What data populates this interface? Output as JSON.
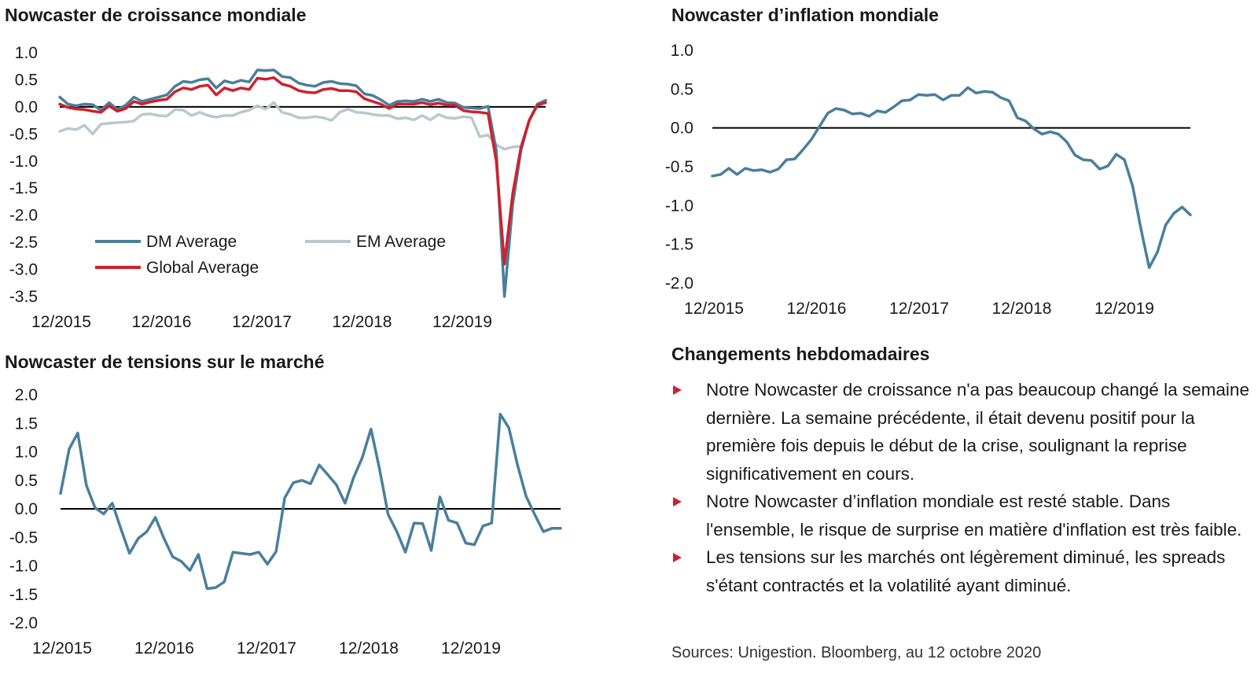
{
  "charts": {
    "growth": {
      "title": "Nowcaster de croissance mondiale"
    },
    "inflation": {
      "title": "Nowcaster d’inflation mondiale"
    },
    "stress": {
      "title": "Nowcaster de tensions sur le marché"
    }
  },
  "colors": {
    "dm": "#4a7f9b",
    "em": "#b9c8d0",
    "global": "#d0202d",
    "zero_line": "#000000",
    "bullet": "#d0202d"
  },
  "weekly": {
    "title": "Changements hebdomadaires",
    "bullets": [
      "Notre Nowcaster de croissance n'a pas beaucoup changé la semaine dernière. La semaine précédente, il était devenu positif pour la première fois depuis le début de la crise, soulignant la reprise significativement en cours.",
      "Notre Nowcaster d’inflation mondiale est resté stable. Dans l'ensemble, le risque de surprise en matière d'inflation est très faible.",
      "Les tensions sur les marchés ont légèrement diminué, les spreads s'étant contractés et la volatilité ayant diminué."
    ]
  },
  "sources": "Sources: Unigestion. Bloomberg, au 12 octobre 2020",
  "chart_data": [
    {
      "type": "line",
      "title": "Nowcaster de croissance mondiale",
      "xlabel": "",
      "ylabel": "",
      "x_tick_labels": [
        "12/2015",
        "12/2016",
        "12/2017",
        "12/2018",
        "12/2019"
      ],
      "y_tick_labels": [
        "1.0",
        "0.5",
        "0.0",
        "-0.5",
        "-1.0",
        "-1.5",
        "-2.0",
        "-2.5",
        "-3.0",
        "-3.5"
      ],
      "ylim": [
        -3.5,
        1.0
      ],
      "x_start": "12/2015",
      "x_end": "10/2020",
      "legend": [
        "DM Average",
        "EM Average",
        "Global Average"
      ],
      "legend_position": "bottom-left",
      "series": [
        {
          "name": "DM Average",
          "color": "#4a7f9b",
          "values": [
            0.18,
            0.05,
            0.02,
            0.05,
            0.04,
            -0.06,
            0.08,
            -0.05,
            0.03,
            0.18,
            0.1,
            0.14,
            0.18,
            0.22,
            0.38,
            0.47,
            0.45,
            0.5,
            0.52,
            0.35,
            0.48,
            0.44,
            0.49,
            0.46,
            0.68,
            0.67,
            0.68,
            0.56,
            0.54,
            0.44,
            0.4,
            0.38,
            0.45,
            0.47,
            0.43,
            0.42,
            0.39,
            0.24,
            0.21,
            0.13,
            0.03,
            0.1,
            0.11,
            0.1,
            0.14,
            0.1,
            0.14,
            0.08,
            0.07,
            -0.01,
            -0.02,
            -0.03,
            0.01,
            -0.8,
            -3.5,
            -1.8,
            -0.8,
            -0.25,
            0.05,
            0.12
          ]
        },
        {
          "name": "EM Average",
          "color": "#b9c8d0",
          "values": [
            -0.45,
            -0.4,
            -0.42,
            -0.34,
            -0.5,
            -0.32,
            -0.3,
            -0.29,
            -0.28,
            -0.26,
            -0.14,
            -0.13,
            -0.16,
            -0.17,
            -0.05,
            -0.06,
            -0.16,
            -0.1,
            -0.16,
            -0.19,
            -0.16,
            -0.16,
            -0.1,
            -0.06,
            0.02,
            -0.04,
            0.08,
            -0.1,
            -0.14,
            -0.2,
            -0.2,
            -0.18,
            -0.2,
            -0.25,
            -0.1,
            -0.04,
            -0.1,
            -0.11,
            -0.14,
            -0.16,
            -0.16,
            -0.22,
            -0.2,
            -0.24,
            -0.16,
            -0.24,
            -0.14,
            -0.2,
            -0.21,
            -0.18,
            -0.2,
            -0.55,
            -0.52,
            -0.7,
            -0.78,
            -0.74,
            -0.73,
            -0.25,
            0.05,
            0.12
          ]
        },
        {
          "name": "Global Average",
          "color": "#d0202d",
          "values": [
            0.05,
            -0.01,
            -0.04,
            -0.05,
            -0.08,
            -0.1,
            0.02,
            -0.08,
            -0.03,
            0.1,
            0.05,
            0.09,
            0.12,
            0.14,
            0.28,
            0.35,
            0.32,
            0.38,
            0.4,
            0.22,
            0.35,
            0.3,
            0.35,
            0.32,
            0.53,
            0.51,
            0.54,
            0.42,
            0.38,
            0.3,
            0.27,
            0.26,
            0.32,
            0.34,
            0.3,
            0.3,
            0.28,
            0.15,
            0.1,
            0.05,
            -0.03,
            0.05,
            0.05,
            0.05,
            0.08,
            0.04,
            0.07,
            0.03,
            0.03,
            -0.07,
            -0.09,
            -0.1,
            -0.12,
            -1.0,
            -2.9,
            -1.6,
            -0.75,
            -0.25,
            0.03,
            0.08
          ]
        }
      ]
    },
    {
      "type": "line",
      "title": "Nowcaster d’inflation mondiale",
      "xlabel": "",
      "ylabel": "",
      "x_tick_labels": [
        "12/2015",
        "12/2016",
        "12/2017",
        "12/2018",
        "12/2019"
      ],
      "y_tick_labels": [
        "1.0",
        "0.5",
        "0.0",
        "-0.5",
        "-1.0",
        "-1.5",
        "-2.0"
      ],
      "ylim": [
        -2.0,
        1.0
      ],
      "x_start": "12/2015",
      "x_end": "10/2020",
      "series": [
        {
          "name": "",
          "color": "#4a7f9b",
          "values": [
            -0.62,
            -0.6,
            -0.52,
            -0.6,
            -0.52,
            -0.55,
            -0.54,
            -0.57,
            -0.53,
            -0.41,
            -0.4,
            -0.28,
            -0.15,
            0.02,
            0.19,
            0.25,
            0.23,
            0.18,
            0.19,
            0.15,
            0.22,
            0.2,
            0.27,
            0.35,
            0.36,
            0.43,
            0.42,
            0.43,
            0.36,
            0.42,
            0.42,
            0.52,
            0.45,
            0.47,
            0.46,
            0.39,
            0.35,
            0.13,
            0.09,
            -0.01,
            -0.08,
            -0.05,
            -0.08,
            -0.18,
            -0.35,
            -0.41,
            -0.42,
            -0.53,
            -0.49,
            -0.34,
            -0.41,
            -0.75,
            -1.3,
            -1.8,
            -1.6,
            -1.25,
            -1.1,
            -1.02,
            -1.12
          ]
        }
      ]
    },
    {
      "type": "line",
      "title": "Nowcaster de tensions sur le marché",
      "xlabel": "",
      "ylabel": "",
      "x_tick_labels": [
        "12/2015",
        "12/2016",
        "12/2017",
        "12/2018",
        "12/2019"
      ],
      "y_tick_labels": [
        "2.0",
        "1.5",
        "1.0",
        "0.5",
        "0.0",
        "-0.5",
        "-1.0",
        "-1.5",
        "-2.0"
      ],
      "ylim": [
        -2.0,
        2.0
      ],
      "x_start": "12/2015",
      "x_end": "10/2020",
      "series": [
        {
          "name": "",
          "color": "#4a7f9b",
          "values": [
            0.27,
            1.05,
            1.33,
            0.41,
            0.02,
            -0.09,
            0.1,
            -0.35,
            -0.78,
            -0.52,
            -0.4,
            -0.15,
            -0.52,
            -0.84,
            -0.92,
            -1.08,
            -0.8,
            -1.4,
            -1.38,
            -1.28,
            -0.76,
            -0.78,
            -0.8,
            -0.76,
            -0.97,
            -0.75,
            0.19,
            0.46,
            0.5,
            0.44,
            0.77,
            0.6,
            0.42,
            0.1,
            0.55,
            0.9,
            1.4,
            0.7,
            -0.1,
            -0.4,
            -0.76,
            -0.25,
            -0.26,
            -0.73,
            0.21,
            -0.2,
            -0.25,
            -0.6,
            -0.63,
            -0.3,
            -0.25,
            1.66,
            1.42,
            0.77,
            0.22,
            -0.1,
            -0.4,
            -0.34,
            -0.34
          ]
        }
      ]
    }
  ]
}
